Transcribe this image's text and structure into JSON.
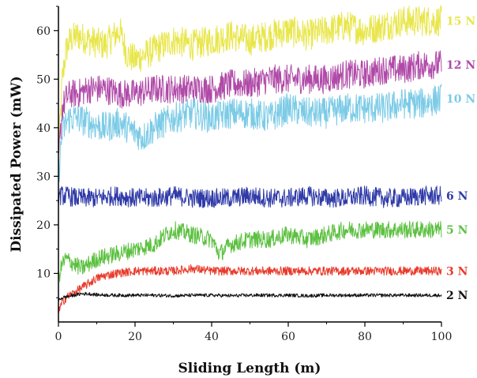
{
  "chart_data": {
    "type": "line",
    "title": "",
    "xlabel": "Sliding Length (m)",
    "ylabel": "Dissipated Power (mW)",
    "xlim": [
      0,
      100
    ],
    "ylim": [
      0,
      65
    ],
    "xticks": [
      "0",
      "20",
      "40",
      "60",
      "80",
      "100"
    ],
    "yticks": [
      "10",
      "20",
      "30",
      "40",
      "50",
      "60"
    ],
    "grid": false,
    "legend": "inline labels at right end of each series",
    "series": [
      {
        "name": "15 N",
        "color": "#e8e64a",
        "x": [
          0,
          1,
          2,
          3,
          5,
          8,
          12,
          16,
          18,
          20,
          25,
          30,
          35,
          40,
          45,
          50,
          55,
          60,
          65,
          70,
          75,
          80,
          85,
          90,
          95,
          100
        ],
        "y": [
          34,
          50,
          56,
          58,
          59,
          58,
          57,
          60,
          55,
          54,
          56,
          58,
          57,
          58,
          59,
          58,
          59,
          60,
          59,
          60,
          61,
          60,
          61,
          62,
          62,
          62
        ]
      },
      {
        "name": "12 N",
        "color": "#b04aa8",
        "x": [
          0,
          1,
          2,
          3,
          5,
          8,
          12,
          16,
          20,
          25,
          30,
          35,
          40,
          45,
          50,
          55,
          60,
          65,
          70,
          75,
          80,
          85,
          90,
          95,
          100
        ],
        "y": [
          33,
          44,
          46,
          47,
          47,
          48,
          48,
          47,
          47,
          48,
          48,
          48,
          48,
          49,
          49,
          50,
          50,
          50,
          50,
          51,
          51,
          52,
          52,
          53,
          53
        ]
      },
      {
        "name": "10 N",
        "color": "#7ccbe6",
        "x": [
          0,
          1,
          2,
          3,
          5,
          8,
          12,
          16,
          20,
          22,
          25,
          30,
          35,
          40,
          45,
          50,
          55,
          60,
          65,
          70,
          75,
          80,
          85,
          90,
          95,
          100
        ],
        "y": [
          30,
          39,
          41,
          42,
          42,
          41,
          40,
          41,
          39,
          38,
          40,
          42,
          43,
          42,
          43,
          43,
          42,
          44,
          43,
          43,
          44,
          44,
          44,
          45,
          45,
          46
        ]
      },
      {
        "name": "6 N",
        "color": "#2f3aa8",
        "x": [
          0,
          2,
          5,
          10,
          15,
          20,
          25,
          30,
          35,
          40,
          45,
          50,
          55,
          60,
          65,
          70,
          75,
          80,
          85,
          90,
          95,
          100
        ],
        "y": [
          26,
          26,
          25.5,
          25.5,
          26,
          25.5,
          25.5,
          26,
          25.5,
          25.5,
          25.5,
          26,
          25.5,
          25.5,
          26,
          25.5,
          25.5,
          26,
          25.5,
          25.5,
          26,
          26
        ]
      },
      {
        "name": "5 N",
        "color": "#5cc040",
        "x": [
          0,
          1,
          2,
          4,
          6,
          10,
          15,
          20,
          25,
          28,
          30,
          35,
          40,
          42,
          45,
          50,
          55,
          60,
          65,
          70,
          75,
          80,
          85,
          90,
          95,
          100
        ],
        "y": [
          9,
          12,
          13,
          12,
          11,
          13,
          14,
          15,
          16,
          18,
          19,
          18,
          17,
          14,
          16,
          17,
          17,
          18,
          17,
          18,
          19,
          19,
          19,
          19,
          19,
          19
        ]
      },
      {
        "name": "3 N",
        "color": "#e83a2a",
        "x": [
          0,
          1,
          2,
          4,
          6,
          8,
          10,
          12,
          15,
          20,
          25,
          30,
          35,
          40,
          45,
          50,
          55,
          60,
          65,
          70,
          75,
          80,
          85,
          90,
          95,
          100
        ],
        "y": [
          2,
          4,
          5,
          6,
          7,
          8,
          9,
          9.5,
          10,
          10.5,
          10.5,
          10.5,
          11,
          10.5,
          10.5,
          10.5,
          10.5,
          10.5,
          10.5,
          10.5,
          10.5,
          10.5,
          10.5,
          10.5,
          10.5,
          10.5
        ]
      },
      {
        "name": "2 N",
        "color": "#111111",
        "x": [
          0,
          1,
          2,
          4,
          6,
          8,
          10,
          15,
          20,
          25,
          30,
          35,
          40,
          45,
          50,
          55,
          60,
          65,
          70,
          75,
          80,
          85,
          90,
          95,
          100
        ],
        "y": [
          4.5,
          5,
          5.2,
          5.5,
          5.8,
          5.8,
          5.6,
          5.5,
          5.5,
          5.5,
          5.4,
          5.5,
          5.5,
          5.4,
          5.5,
          5.5,
          5.5,
          5.4,
          5.5,
          5.5,
          5.5,
          5.5,
          5.5,
          5.5,
          5.5
        ]
      }
    ]
  }
}
